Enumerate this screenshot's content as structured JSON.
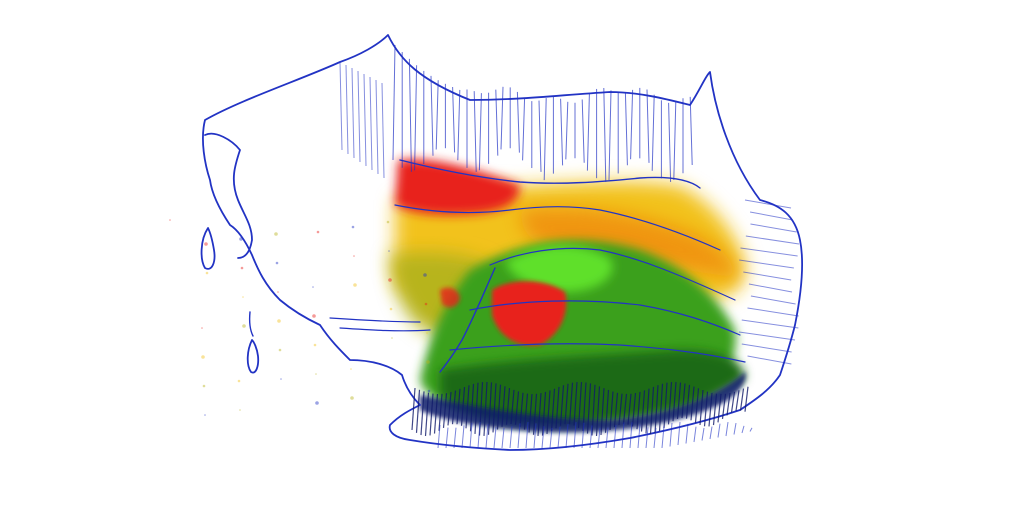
{
  "image": {
    "background": "#ffffff",
    "outline_color": "#2233c4",
    "colors": {
      "red": "#e8201a",
      "orange": "#f08a10",
      "yellow": "#f2c21c",
      "olive": "#b7b41e",
      "green": "#3aa01e",
      "bright_green": "#5ee02a",
      "dark_green": "#1e6a14",
      "navy": "#101a6a"
    }
  }
}
